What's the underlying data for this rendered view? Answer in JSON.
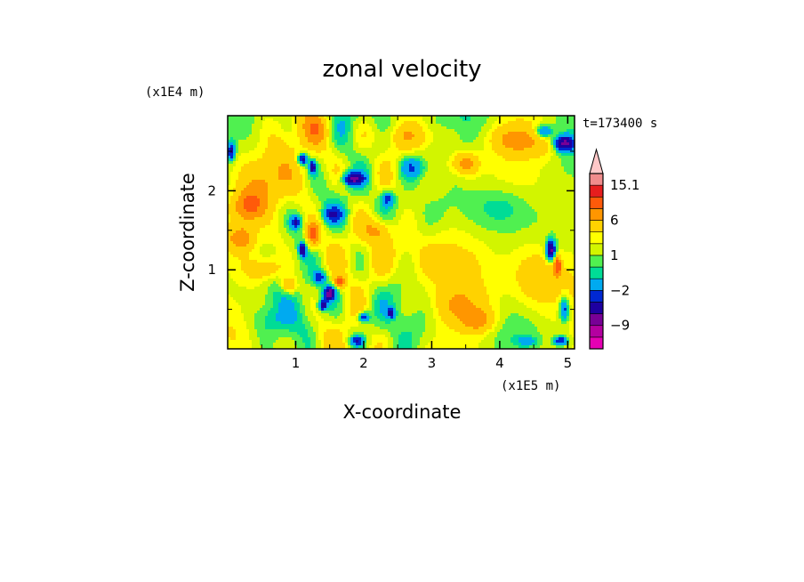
{
  "chart_data": {
    "type": "heatmap",
    "title": "zonal velocity",
    "xlabel": "X-coordinate",
    "ylabel": "Z-coordinate",
    "x_unit": "(x1E5 m)",
    "y_unit": "(x1E4 m)",
    "time_label": "t=173400 s",
    "xlim": [
      0,
      5.1
    ],
    "ylim": [
      0,
      2.95
    ],
    "x_ticks": [
      {
        "value": 1,
        "label": "1"
      },
      {
        "value": 2,
        "label": "2"
      },
      {
        "value": 3,
        "label": "3"
      },
      {
        "value": 4,
        "label": "4"
      },
      {
        "value": 5,
        "label": "5"
      }
    ],
    "y_ticks": [
      {
        "value": 1,
        "label": "1"
      },
      {
        "value": 2,
        "label": "2"
      }
    ],
    "colorbar": {
      "levels": [
        -15,
        -12,
        -9,
        -6,
        -4,
        -2,
        -1,
        0,
        1,
        2,
        4,
        6,
        9,
        12,
        15.1
      ],
      "colors": [
        "#e600b4",
        "#b400a0",
        "#780096",
        "#1e00a0",
        "#0028d2",
        "#00aaf0",
        "#00dc96",
        "#50f050",
        "#d2f500",
        "#ffff00",
        "#ffd200",
        "#ff9600",
        "#ff5a0a",
        "#e61e1e",
        "#f08c8c",
        "#ffc8c8"
      ],
      "labels": [
        {
          "value": 15.1,
          "label": "15.1"
        },
        {
          "value": 6,
          "label": "6"
        },
        {
          "value": 1,
          "label": "1"
        },
        {
          "value": -2,
          "label": "−2"
        },
        {
          "value": -9,
          "label": "−9"
        }
      ],
      "extend": "max"
    },
    "features": [
      {
        "x": 0.55,
        "z": 2.1,
        "sx": 0.5,
        "sz": 0.35,
        "a": 4
      },
      {
        "x": 0.3,
        "z": 1.8,
        "sx": 0.25,
        "sz": 0.2,
        "a": 5
      },
      {
        "x": 1.3,
        "z": 2.8,
        "sx": 0.25,
        "sz": 0.25,
        "a": 4
      },
      {
        "x": 1.85,
        "z": 2.15,
        "sx": 0.15,
        "sz": 0.08,
        "a": -9
      },
      {
        "x": 1.1,
        "z": 2.4,
        "sx": 0.07,
        "sz": 0.07,
        "a": -8
      },
      {
        "x": 1.25,
        "z": 2.3,
        "sx": 0.05,
        "sz": 0.08,
        "a": -8
      },
      {
        "x": 1.25,
        "z": 1.45,
        "sx": 0.1,
        "sz": 0.15,
        "a": 7
      },
      {
        "x": 1.1,
        "z": 1.25,
        "sx": 0.05,
        "sz": 0.08,
        "a": -9
      },
      {
        "x": 1.0,
        "z": 1.6,
        "sx": 0.08,
        "sz": 0.08,
        "a": -6
      },
      {
        "x": 1.5,
        "z": 0.7,
        "sx": 0.08,
        "sz": 0.08,
        "a": -11
      },
      {
        "x": 1.4,
        "z": 0.55,
        "sx": 0.06,
        "sz": 0.06,
        "a": -9
      },
      {
        "x": 1.65,
        "z": 0.85,
        "sx": 0.08,
        "sz": 0.07,
        "a": 6
      },
      {
        "x": 1.35,
        "z": 0.9,
        "sx": 0.1,
        "sz": 0.08,
        "a": -5
      },
      {
        "x": 2.0,
        "z": 0.4,
        "sx": 0.08,
        "sz": 0.06,
        "a": -7
      },
      {
        "x": 2.4,
        "z": 0.45,
        "sx": 0.06,
        "sz": 0.06,
        "a": -6
      },
      {
        "x": 1.9,
        "z": 0.1,
        "sx": 0.1,
        "sz": 0.06,
        "a": -6
      },
      {
        "x": 1.55,
        "z": 1.7,
        "sx": 0.15,
        "sz": 0.1,
        "a": -5
      },
      {
        "x": 2.7,
        "z": 2.3,
        "sx": 0.2,
        "sz": 0.15,
        "a": -5
      },
      {
        "x": 3.5,
        "z": 2.35,
        "sx": 0.2,
        "sz": 0.15,
        "a": 5
      },
      {
        "x": 2.9,
        "z": 1.2,
        "sx": 0.7,
        "sz": 0.4,
        "a": 2
      },
      {
        "x": 3.4,
        "z": 0.55,
        "sx": 0.5,
        "sz": 0.25,
        "a": 3
      },
      {
        "x": 3.7,
        "z": 0.35,
        "sx": 0.25,
        "sz": 0.15,
        "a": 4
      },
      {
        "x": 4.5,
        "z": 0.9,
        "sx": 0.4,
        "sz": 0.5,
        "a": 3
      },
      {
        "x": 4.2,
        "z": 2.65,
        "sx": 0.4,
        "sz": 0.2,
        "a": 4
      },
      {
        "x": 4.7,
        "z": 2.6,
        "sx": 0.3,
        "sz": 0.2,
        "a": 2
      },
      {
        "x": 4.95,
        "z": 2.6,
        "sx": 0.15,
        "sz": 0.1,
        "a": -10
      },
      {
        "x": 4.65,
        "z": 2.75,
        "sx": 0.12,
        "sz": 0.08,
        "a": -6
      },
      {
        "x": 4.75,
        "z": 1.25,
        "sx": 0.07,
        "sz": 0.12,
        "a": -11
      },
      {
        "x": 4.85,
        "z": 1.05,
        "sx": 0.05,
        "sz": 0.12,
        "a": 7
      },
      {
        "x": 4.95,
        "z": 0.5,
        "sx": 0.07,
        "sz": 0.15,
        "a": -6
      },
      {
        "x": 4.9,
        "z": 0.1,
        "sx": 0.1,
        "sz": 0.06,
        "a": -7
      },
      {
        "x": 4.4,
        "z": 0.1,
        "sx": 0.15,
        "sz": 0.06,
        "a": -3
      },
      {
        "x": 0.05,
        "z": 2.5,
        "sx": 0.06,
        "sz": 0.12,
        "a": -7
      },
      {
        "x": 0.7,
        "z": 0.35,
        "sx": 0.3,
        "sz": 0.2,
        "a": -2
      },
      {
        "x": 0.9,
        "z": 0.8,
        "sx": 0.12,
        "sz": 0.1,
        "a": 5
      },
      {
        "x": 0.6,
        "z": 1.0,
        "sx": 0.3,
        "sz": 0.15,
        "a": 3
      },
      {
        "x": 3.2,
        "z": 2.7,
        "sx": 0.3,
        "sz": 0.15,
        "a": 1
      },
      {
        "x": 2.2,
        "z": 1.5,
        "sx": 0.2,
        "sz": 0.15,
        "a": 4
      },
      {
        "x": 2.35,
        "z": 1.9,
        "sx": 0.1,
        "sz": 0.1,
        "a": -5
      },
      {
        "x": 4.0,
        "z": 1.8,
        "sx": 0.4,
        "sz": 0.25,
        "a": -2
      },
      {
        "x": 2.6,
        "z": 2.7,
        "sx": 0.4,
        "sz": 0.15,
        "a": 2
      },
      {
        "x": 0.2,
        "z": 1.4,
        "sx": 0.2,
        "sz": 0.15,
        "a": 4
      }
    ]
  }
}
